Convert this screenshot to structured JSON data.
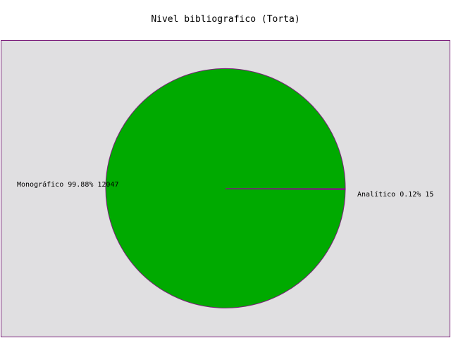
{
  "chart_data": {
    "type": "pie",
    "title": "Nivel bibliografico (Torta)",
    "slices": [
      {
        "name": "Monográfico",
        "percent_label": "99.88%",
        "value": 12047,
        "label": "Monográfico 99.88% 12047",
        "color": "#00aa00"
      },
      {
        "name": "Analítico",
        "percent_label": "0.12%",
        "value": 15,
        "label": "Analítico 0.12% 15",
        "color": "#7b1f7b"
      }
    ],
    "background_color": "#e0dfe1",
    "border_color": "#7b1f7b",
    "outline_color": "#7b1f7b",
    "legend": "none"
  }
}
